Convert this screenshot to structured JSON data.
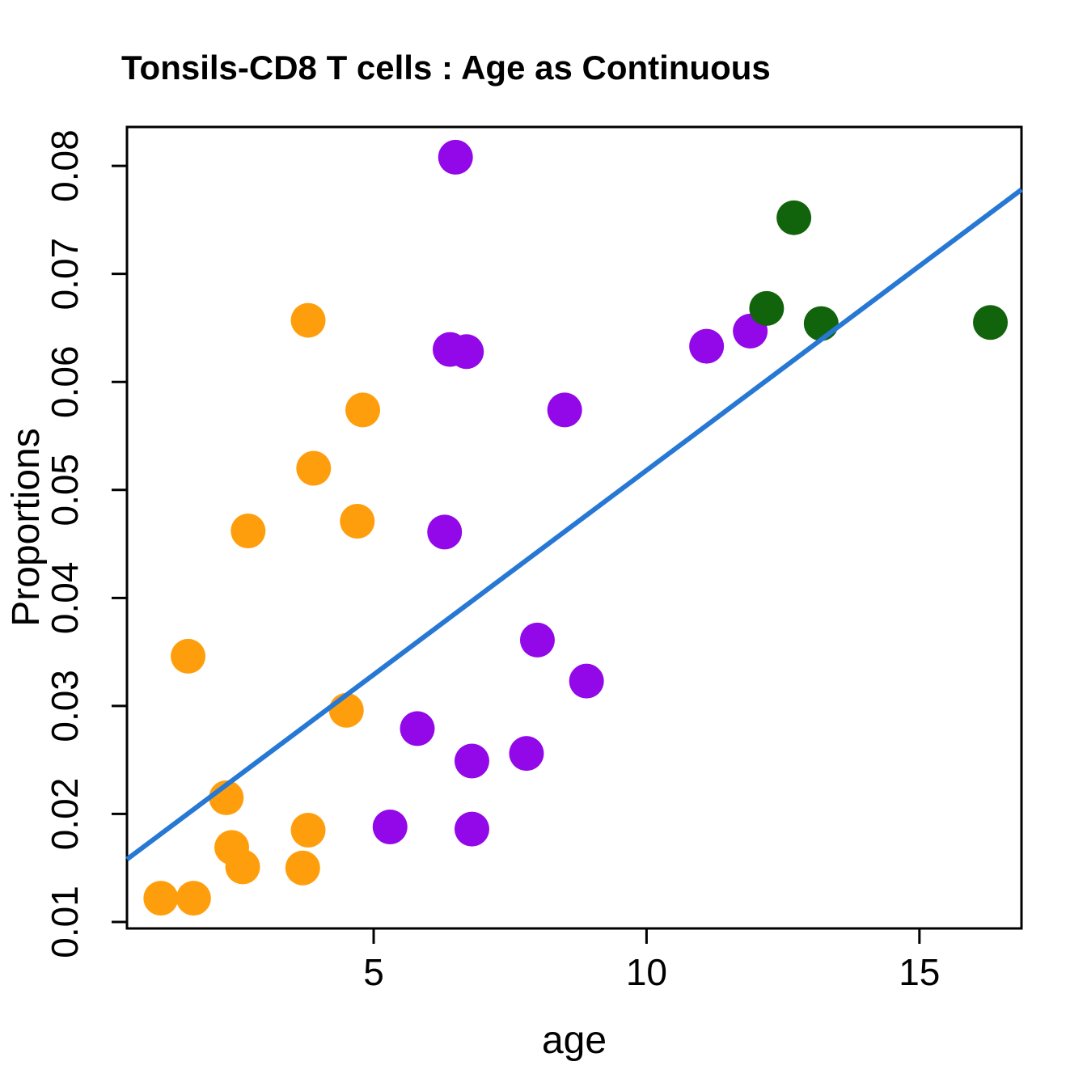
{
  "title": "Tonsils-CD8 T cells : Age as Continuous",
  "colors": {
    "orange_points": "#FF9E0D",
    "purple_points": "#9208E8",
    "green_points": "#12640C",
    "regression_line": "#2678D4",
    "axis": "#000000",
    "background": "#FFFFFF"
  },
  "chart_data": {
    "type": "scatter",
    "title": "Tonsils-CD8 T cells : Age as Continuous",
    "xlabel": "age",
    "ylabel": "Proportions",
    "xlim": [
      0.48,
      16.87
    ],
    "ylim": [
      0.0094,
      0.0836
    ],
    "x_ticks": [
      5,
      10,
      15
    ],
    "y_ticks": [
      0.01,
      0.02,
      0.03,
      0.04,
      0.05,
      0.06,
      0.07,
      0.08
    ],
    "grid": false,
    "legend": "none",
    "series": [
      {
        "name": "orange",
        "color": "#FF9E0D",
        "points": [
          [
            1.1,
            0.0122
          ],
          [
            1.7,
            0.0122
          ],
          [
            1.6,
            0.0346
          ],
          [
            2.3,
            0.0215
          ],
          [
            2.4,
            0.0169
          ],
          [
            2.6,
            0.0151
          ],
          [
            2.7,
            0.0462
          ],
          [
            3.7,
            0.015
          ],
          [
            3.8,
            0.0185
          ],
          [
            3.8,
            0.0657
          ],
          [
            3.9,
            0.052
          ],
          [
            4.5,
            0.0296
          ],
          [
            4.7,
            0.0471
          ],
          [
            4.8,
            0.0574
          ]
        ]
      },
      {
        "name": "purple",
        "color": "#9208E8",
        "points": [
          [
            6.5,
            0.0808
          ],
          [
            6.4,
            0.063
          ],
          [
            6.7,
            0.0628
          ],
          [
            6.3,
            0.0461
          ],
          [
            5.8,
            0.0279
          ],
          [
            5.3,
            0.0188
          ],
          [
            6.8,
            0.0249
          ],
          [
            6.8,
            0.0186
          ],
          [
            7.8,
            0.0256
          ],
          [
            8.0,
            0.0361
          ],
          [
            8.5,
            0.0574
          ],
          [
            8.9,
            0.0323
          ],
          [
            11.1,
            0.0633
          ],
          [
            11.9,
            0.0647
          ]
        ]
      },
      {
        "name": "darkgreen",
        "color": "#12640C",
        "points": [
          [
            12.2,
            0.0668
          ],
          [
            12.7,
            0.0752
          ],
          [
            13.2,
            0.0654
          ],
          [
            16.3,
            0.0655
          ]
        ]
      }
    ],
    "regression_line": {
      "color": "#2678D4",
      "x": [
        0.48,
        16.87
      ],
      "y": [
        0.0158,
        0.0778
      ]
    }
  }
}
